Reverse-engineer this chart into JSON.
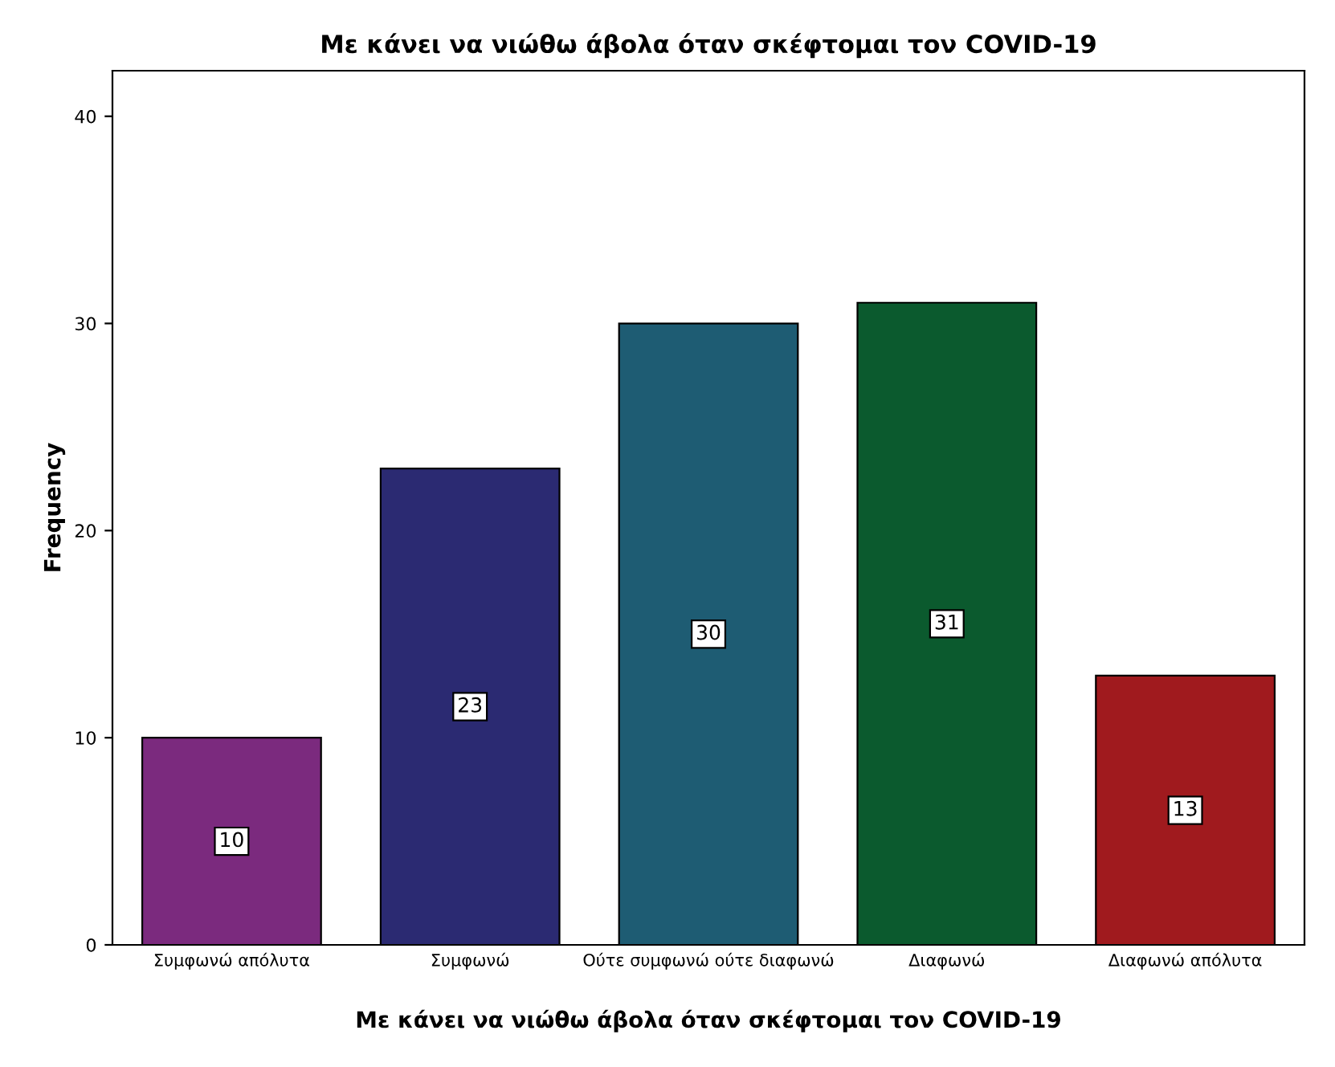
{
  "chart_data": {
    "type": "bar",
    "title": "Με κάνει να νιώθω άβολα όταν σκέφτομαι τον COVID-19",
    "xlabel": "Με κάνει να νιώθω άβολα όταν σκέφτομαι τον COVID-19",
    "ylabel": "Frequency",
    "categories": [
      "Συμφωνώ απόλυτα",
      "Συμφωνώ",
      "Ούτε συμφωνώ ούτε διαφωνώ",
      "Διαφωνώ",
      "Διαφωνώ απόλυτα"
    ],
    "values": [
      10,
      23,
      30,
      31,
      13
    ],
    "colors": [
      "#7b2a7e",
      "#2b2a72",
      "#1e5c73",
      "#0b5a2e",
      "#a01a1e"
    ],
    "ylim": [
      0,
      42.2
    ],
    "yticks": [
      0,
      10,
      20,
      30,
      40
    ],
    "data_labels": true,
    "grid": false,
    "legend": false
  }
}
